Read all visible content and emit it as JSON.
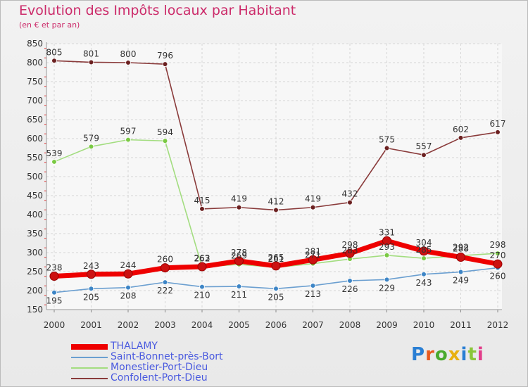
{
  "title": "Evolution des Impôts locaux par Habitant",
  "subtitle": "(en € et par an)",
  "brand": {
    "text": "Proxiti",
    "letter_colors": [
      "#2a7fd4",
      "#e85a1f",
      "#4aaa2e",
      "#e8b010",
      "#2a7fd4",
      "#8ac63a",
      "#e23d8a"
    ]
  },
  "chart_data": {
    "type": "line",
    "title": "Evolution des Impôts locaux par Habitant",
    "subtitle": "(en € et par an)",
    "xlabel": "",
    "ylabel": "",
    "x": [
      "2000",
      "2001",
      "2002",
      "2003",
      "2004",
      "2005",
      "2006",
      "2007",
      "2008",
      "2009",
      "2010",
      "2011",
      "2012"
    ],
    "ylim": [
      150,
      850
    ],
    "yticks": [
      150,
      200,
      250,
      300,
      350,
      400,
      450,
      500,
      550,
      600,
      650,
      700,
      750,
      800,
      850
    ],
    "grid": true,
    "legend_position": "bottom-left",
    "series": [
      {
        "name": "THALAMY",
        "color": "#ee0000",
        "marker_color": "#cc1111",
        "emphasis": true,
        "values": [
          238,
          243,
          244,
          260,
          263,
          278,
          265,
          281,
          298,
          331,
          304,
          288,
          270
        ]
      },
      {
        "name": "Saint-Bonnet-près-Bort",
        "color": "#6b9fd0",
        "marker_color": "#3d85c6",
        "emphasis": false,
        "values": [
          195,
          205,
          208,
          222,
          210,
          211,
          205,
          213,
          226,
          229,
          243,
          249,
          260
        ]
      },
      {
        "name": "Monestier-Port-Dieu",
        "color": "#a3dd80",
        "marker_color": "#7ac943",
        "emphasis": false,
        "values": [
          539,
          579,
          597,
          594,
          262,
          269,
          261,
          271,
          283,
          293,
          285,
          292,
          298
        ]
      },
      {
        "name": "Confolent-Port-Dieu",
        "color": "#8a3b3b",
        "marker_color": "#6b2020",
        "emphasis": false,
        "values": [
          805,
          801,
          800,
          796,
          415,
          419,
          412,
          419,
          432,
          575,
          557,
          602,
          617
        ]
      }
    ]
  }
}
